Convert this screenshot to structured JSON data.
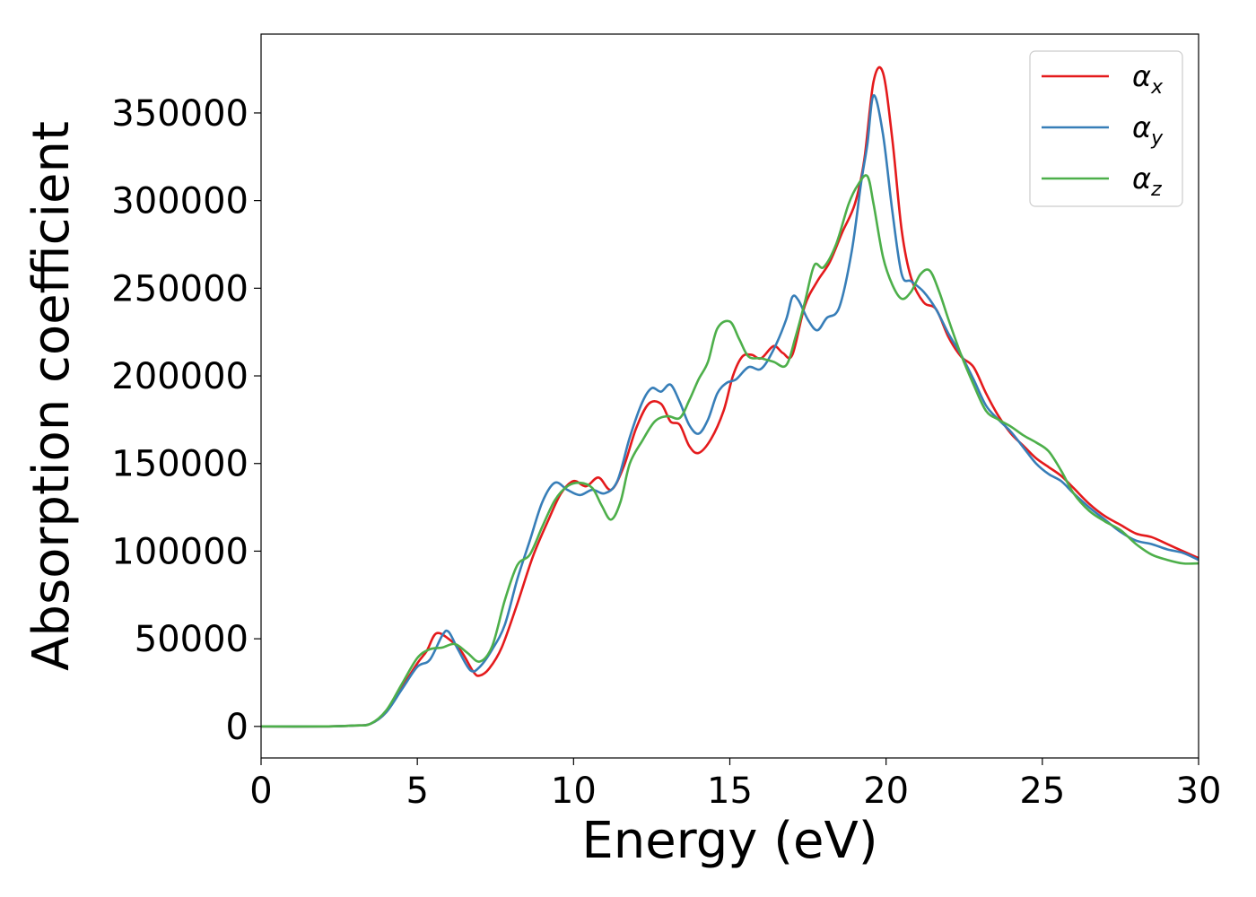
{
  "chart_data": {
    "type": "line",
    "xlabel": "Energy (eV)",
    "ylabel": "Absorption coefficient",
    "xlim": [
      0,
      30
    ],
    "ylim": [
      -18000,
      395000
    ],
    "xticks": [
      0,
      5,
      10,
      15,
      20,
      25,
      30
    ],
    "yticks": [
      0,
      50000,
      100000,
      150000,
      200000,
      250000,
      300000,
      350000
    ],
    "grid": false,
    "legend_position": "top-right",
    "series": [
      {
        "name": "α",
        "subscript": "x",
        "color": "#e41a1c",
        "x": [
          0,
          2,
          3,
          3.5,
          4,
          4.5,
          5,
          5.3,
          5.6,
          6,
          6.4,
          6.8,
          7,
          7.3,
          7.7,
          8.2,
          8.7,
          9.2,
          9.6,
          10,
          10.4,
          10.8,
          11.2,
          11.6,
          12,
          12.4,
          12.8,
          13.1,
          13.4,
          13.7,
          14,
          14.4,
          14.8,
          15.1,
          15.4,
          15.7,
          16,
          16.4,
          16.7,
          17,
          17.4,
          17.8,
          18.2,
          18.6,
          19,
          19.3,
          19.6,
          19.9,
          20.2,
          20.5,
          20.8,
          21.2,
          21.6,
          22,
          22.4,
          22.8,
          23.2,
          23.6,
          24,
          24.4,
          24.8,
          25.2,
          25.6,
          26,
          26.5,
          27,
          27.5,
          28,
          28.5,
          29,
          29.5,
          30
        ],
        "y": [
          0,
          0,
          500,
          1500,
          8000,
          22000,
          36000,
          43000,
          53000,
          50000,
          43000,
          31000,
          29000,
          33000,
          45000,
          70000,
          97000,
          118000,
          133000,
          140000,
          137000,
          142000,
          135000,
          148000,
          170000,
          184000,
          184000,
          174000,
          172000,
          160000,
          156000,
          164000,
          180000,
          200000,
          211000,
          212000,
          210000,
          217000,
          213000,
          212000,
          240000,
          254000,
          265000,
          282000,
          298000,
          323000,
          368000,
          373000,
          335000,
          283000,
          256000,
          242000,
          238000,
          222000,
          211000,
          205000,
          190000,
          177000,
          167000,
          160000,
          153000,
          148000,
          143000,
          136000,
          127000,
          120000,
          115000,
          110000,
          108000,
          104000,
          100000,
          96000
        ]
      },
      {
        "name": "α",
        "subscript": "y",
        "color": "#377eb8",
        "x": [
          0,
          2,
          3,
          3.5,
          4,
          4.5,
          5,
          5.4,
          5.8,
          6,
          6.3,
          6.7,
          7,
          7.4,
          7.8,
          8.2,
          8.6,
          9,
          9.4,
          9.8,
          10.2,
          10.6,
          11,
          11.4,
          11.8,
          12.2,
          12.5,
          12.8,
          13.1,
          13.4,
          13.7,
          14,
          14.3,
          14.6,
          14.9,
          15.2,
          15.6,
          16,
          16.4,
          16.8,
          17,
          17.2,
          17.5,
          17.8,
          18.1,
          18.5,
          18.9,
          19.2,
          19.4,
          19.6,
          19.9,
          20.2,
          20.5,
          20.8,
          21.2,
          21.6,
          22,
          22.4,
          22.8,
          23.2,
          23.6,
          24,
          24.4,
          24.8,
          25.2,
          25.6,
          26,
          26.5,
          27,
          27.5,
          28,
          28.5,
          29,
          29.5,
          30
        ],
        "y": [
          0,
          0,
          500,
          1500,
          8000,
          21000,
          34000,
          38000,
          52000,
          54000,
          44000,
          32000,
          34000,
          44000,
          58000,
          84000,
          106000,
          128000,
          139000,
          135000,
          132000,
          135000,
          133000,
          140000,
          165000,
          185000,
          193000,
          191000,
          195000,
          185000,
          172000,
          167000,
          175000,
          190000,
          196000,
          198000,
          205000,
          204000,
          215000,
          232000,
          245000,
          243000,
          232000,
          226000,
          233000,
          239000,
          271000,
          310000,
          332000,
          360000,
          338000,
          294000,
          258000,
          254000,
          248000,
          238000,
          224000,
          212000,
          198000,
          183000,
          175000,
          168000,
          159000,
          150000,
          144000,
          140000,
          133000,
          125000,
          118000,
          111000,
          106000,
          104000,
          101000,
          99000,
          95000
        ]
      },
      {
        "name": "α",
        "subscript": "z",
        "color": "#4daf4a",
        "x": [
          0,
          2,
          3,
          3.5,
          4,
          4.5,
          5,
          5.4,
          5.8,
          6.2,
          6.6,
          7,
          7.4,
          7.8,
          8.2,
          8.6,
          9,
          9.4,
          9.8,
          10.2,
          10.6,
          10.9,
          11.2,
          11.5,
          11.8,
          12.2,
          12.6,
          13,
          13.4,
          13.7,
          14,
          14.3,
          14.6,
          15,
          15.3,
          15.6,
          16,
          16.4,
          16.8,
          17.1,
          17.4,
          17.7,
          18,
          18.4,
          18.8,
          19.1,
          19.4,
          19.6,
          19.9,
          20.2,
          20.5,
          20.8,
          21.1,
          21.4,
          21.7,
          22,
          22.4,
          22.8,
          23.2,
          23.6,
          24,
          24.4,
          24.8,
          25.2,
          25.6,
          26,
          26.5,
          27,
          27.5,
          28,
          28.5,
          29,
          29.5,
          30
        ],
        "y": [
          0,
          0,
          500,
          1500,
          9000,
          24000,
          39000,
          44000,
          45000,
          47000,
          42000,
          37000,
          46000,
          72000,
          92000,
          98000,
          114000,
          129000,
          137000,
          139000,
          136000,
          126000,
          118000,
          128000,
          150000,
          163000,
          174000,
          177000,
          176000,
          186000,
          198000,
          208000,
          227000,
          231000,
          221000,
          211000,
          210000,
          208000,
          206000,
          222000,
          242000,
          263000,
          262000,
          275000,
          298000,
          309000,
          314000,
          298000,
          268000,
          252000,
          244000,
          248000,
          258000,
          260000,
          248000,
          232000,
          212000,
          195000,
          180000,
          175000,
          171000,
          166000,
          162000,
          157000,
          146000,
          133000,
          123000,
          117000,
          112000,
          104000,
          98000,
          95000,
          93000,
          93000
        ]
      }
    ]
  }
}
